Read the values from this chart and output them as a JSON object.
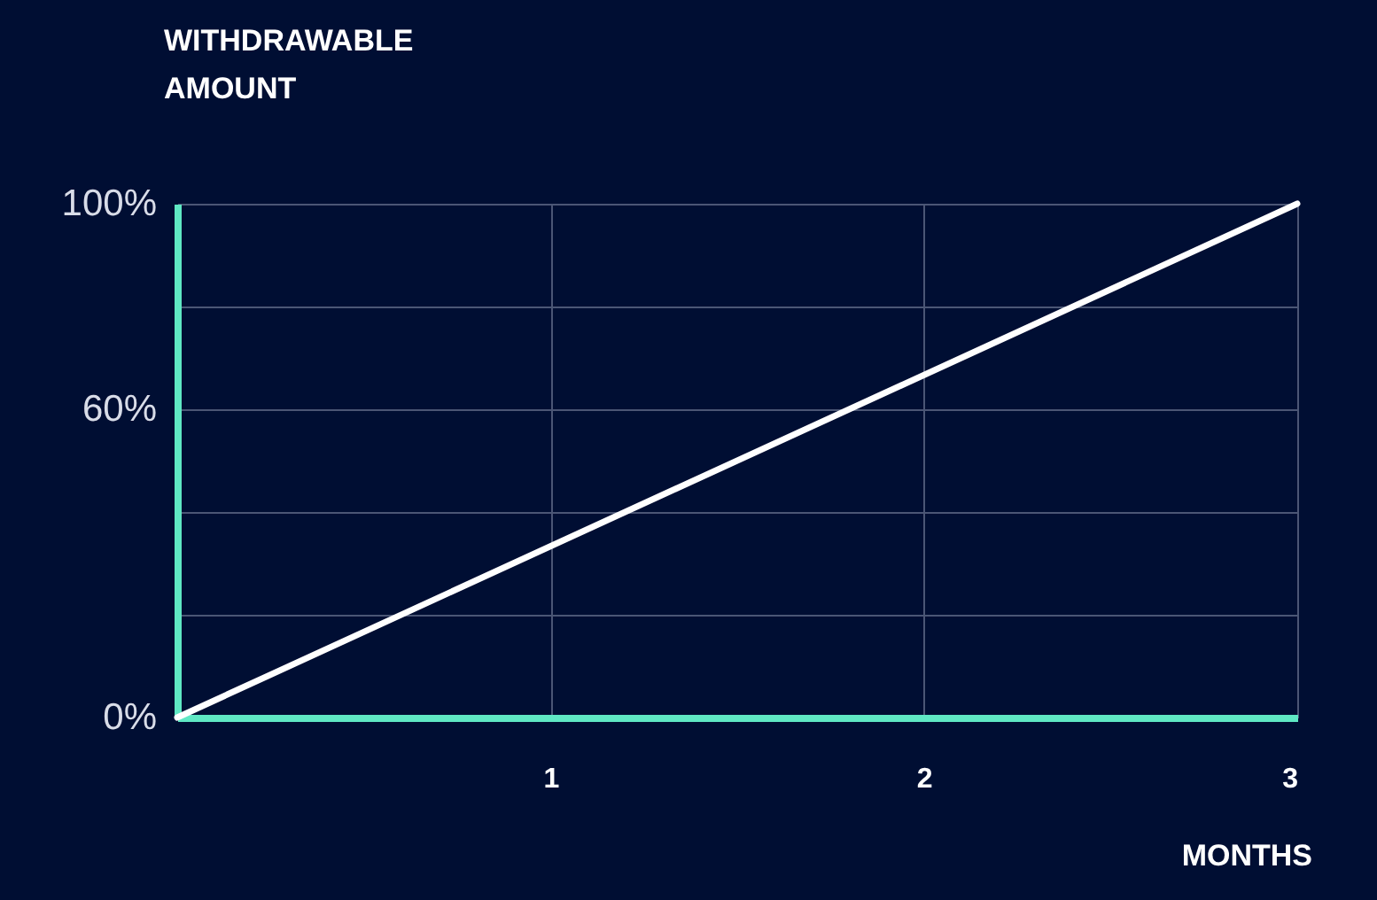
{
  "chart_data": {
    "type": "line",
    "xlabel": "MONTHS",
    "ylabel": "WITHDRAWABLE AMOUNT",
    "x": [
      0,
      3
    ],
    "series": [
      {
        "color": "#ffffff",
        "values": [
          0,
          100
        ]
      }
    ],
    "xlim": [
      0,
      3
    ],
    "xticks": [
      1,
      2,
      3
    ],
    "ylim": [
      0,
      100
    ],
    "yticks": [
      {
        "value": 0,
        "label": "0%"
      },
      {
        "value": 20,
        "label": null
      },
      {
        "value": 40,
        "label": null
      },
      {
        "value": 60,
        "label": "60%"
      },
      {
        "value": 80,
        "label": null
      },
      {
        "value": 100,
        "label": "100%"
      }
    ],
    "grid": true,
    "marker": "none",
    "line_style": "solid"
  }
}
